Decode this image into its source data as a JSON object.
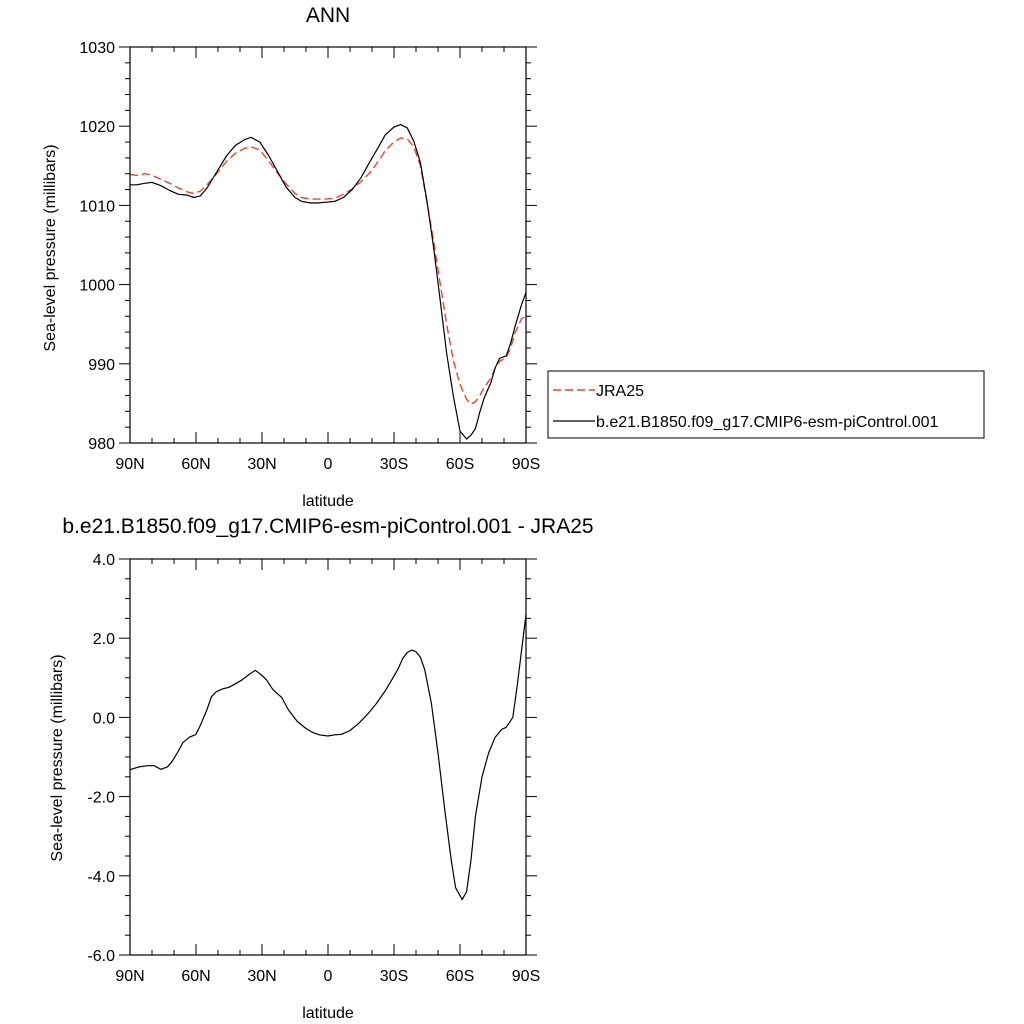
{
  "chart_data": [
    {
      "type": "line",
      "title": "ANN",
      "xlabel": "latitude",
      "ylabel": "Sea-level pressure (millibars)",
      "xlim": [
        90,
        -90
      ],
      "ylim": [
        980,
        1030
      ],
      "x_tick_values": [
        90,
        60,
        30,
        0,
        -30,
        -60,
        -90
      ],
      "x_tick_labels": [
        "90N",
        "60N",
        "30N",
        "0",
        "30S",
        "60S",
        "90S"
      ],
      "y_tick_values": [
        980,
        990,
        1000,
        1010,
        1020,
        1030
      ],
      "y_tick_labels": [
        "980",
        "990",
        "1000",
        "1010",
        "1020",
        "1030"
      ],
      "grid": false,
      "legend_placement": "right",
      "series": [
        {
          "name": "JRA25",
          "color": "#e8443a",
          "dash": "dashed",
          "x": [
            90,
            87,
            83,
            80,
            76,
            72,
            68,
            64,
            61,
            58,
            55,
            50,
            46,
            42,
            38,
            35,
            31,
            27,
            23,
            19,
            15,
            12,
            8,
            5,
            1,
            -3,
            -7,
            -11,
            -15,
            -19,
            -23,
            -26,
            -30,
            -33,
            -36,
            -39,
            -42,
            -45,
            -48,
            -51,
            -54,
            -57,
            -60,
            -63,
            -65,
            -67,
            -69,
            -71,
            -74,
            -76,
            -78,
            -81,
            -83,
            -85,
            -88,
            -90
          ],
          "y": [
            1013.9,
            1013.8,
            1014.0,
            1013.8,
            1013.3,
            1012.8,
            1012.2,
            1011.7,
            1011.5,
            1011.8,
            1012.6,
            1014.2,
            1015.6,
            1016.6,
            1017.2,
            1017.4,
            1017.0,
            1015.6,
            1014.1,
            1012.7,
            1011.5,
            1011.0,
            1010.8,
            1010.8,
            1010.8,
            1010.9,
            1011.4,
            1012.1,
            1013.0,
            1014.1,
            1015.6,
            1016.9,
            1018.0,
            1018.5,
            1018.4,
            1017.4,
            1015.0,
            1010.4,
            1005.5,
            1000.1,
            994.9,
            990.4,
            987.4,
            985.5,
            984.9,
            985.2,
            986.0,
            987.0,
            988.2,
            989.5,
            990.3,
            990.8,
            992.0,
            993.9,
            995.7,
            996.0
          ]
        },
        {
          "name": "b.e21.B1850.f09_g17.CMIP6-esm-piControl.001",
          "color": "#000000",
          "dash": "solid",
          "x": [
            90,
            87,
            83,
            80,
            76,
            72,
            68,
            64,
            61,
            58,
            55,
            50,
            46,
            42,
            38,
            35,
            31,
            27,
            23,
            19,
            15,
            12,
            8,
            5,
            1,
            -3,
            -7,
            -11,
            -15,
            -19,
            -23,
            -26,
            -30,
            -33,
            -36,
            -39,
            -42,
            -45,
            -48,
            -51,
            -54,
            -57,
            -60,
            -63,
            -65,
            -67,
            -69,
            -71,
            -74,
            -76,
            -78,
            -81,
            -83,
            -85,
            -88,
            -90
          ],
          "y": [
            1012.6,
            1012.6,
            1012.8,
            1012.9,
            1012.5,
            1011.9,
            1011.4,
            1011.3,
            1011.0,
            1011.2,
            1012.2,
            1014.5,
            1016.3,
            1017.6,
            1018.3,
            1018.6,
            1018.0,
            1016.3,
            1014.3,
            1012.3,
            1011.0,
            1010.5,
            1010.3,
            1010.3,
            1010.4,
            1010.5,
            1011.0,
            1012.0,
            1013.5,
            1015.5,
            1017.4,
            1018.9,
            1019.9,
            1020.2,
            1019.8,
            1018.1,
            1015.4,
            1010.5,
            1004.7,
            998.0,
            991.2,
            985.9,
            981.5,
            980.5,
            981.0,
            981.8,
            983.9,
            985.7,
            987.6,
            989.5,
            990.7,
            991.0,
            992.6,
            994.7,
            997.5,
            999.0
          ]
        }
      ]
    },
    {
      "type": "line",
      "title": "b.e21.B1850.f09_g17.CMIP6-esm-piControl.001 - JRA25",
      "xlabel": "latitude",
      "ylabel": "Sea-level pressure (millibars)",
      "xlim": [
        90,
        -90
      ],
      "ylim": [
        -6.0,
        4.0
      ],
      "x_tick_values": [
        90,
        60,
        30,
        0,
        -30,
        -60,
        -90
      ],
      "x_tick_labels": [
        "90N",
        "60N",
        "30N",
        "0",
        "30S",
        "60S",
        "90S"
      ],
      "y_tick_values": [
        -6.0,
        -4.0,
        -2.0,
        0.0,
        2.0,
        4.0
      ],
      "y_tick_labels": [
        "-6.0",
        "-4.0",
        "-2.0",
        "0.0",
        "2.0",
        "4.0"
      ],
      "grid": false,
      "series": [
        {
          "color": "#000000",
          "dash": "solid",
          "x": [
            90,
            86,
            82,
            79,
            76,
            73,
            71,
            68,
            66,
            63,
            60,
            58,
            55,
            53,
            51,
            48,
            45,
            42,
            39,
            36,
            33,
            30,
            28,
            25,
            21,
            18,
            14,
            10,
            7,
            4,
            0,
            -3,
            -6,
            -10,
            -14,
            -18,
            -22,
            -26,
            -29,
            -32,
            -34,
            -36,
            -38,
            -40,
            -42,
            -44,
            -47,
            -50,
            -53,
            -56,
            -58,
            -61,
            -63,
            -65,
            -67,
            -70,
            -73,
            -76,
            -79,
            -81,
            -84,
            -86,
            -88,
            -90
          ],
          "y": [
            -1.32,
            -1.25,
            -1.22,
            -1.22,
            -1.31,
            -1.25,
            -1.12,
            -0.85,
            -0.64,
            -0.5,
            -0.43,
            -0.2,
            0.2,
            0.52,
            0.64,
            0.72,
            0.76,
            0.85,
            0.95,
            1.08,
            1.19,
            1.06,
            0.95,
            0.7,
            0.5,
            0.19,
            -0.1,
            -0.28,
            -0.38,
            -0.44,
            -0.47,
            -0.44,
            -0.43,
            -0.33,
            -0.15,
            0.08,
            0.35,
            0.67,
            0.95,
            1.24,
            1.49,
            1.64,
            1.7,
            1.66,
            1.52,
            1.2,
            0.35,
            -0.9,
            -2.3,
            -3.6,
            -4.3,
            -4.6,
            -4.4,
            -3.6,
            -2.5,
            -1.5,
            -0.9,
            -0.5,
            -0.3,
            -0.25,
            0.0,
            0.8,
            1.7,
            2.6
          ]
        }
      ]
    }
  ]
}
